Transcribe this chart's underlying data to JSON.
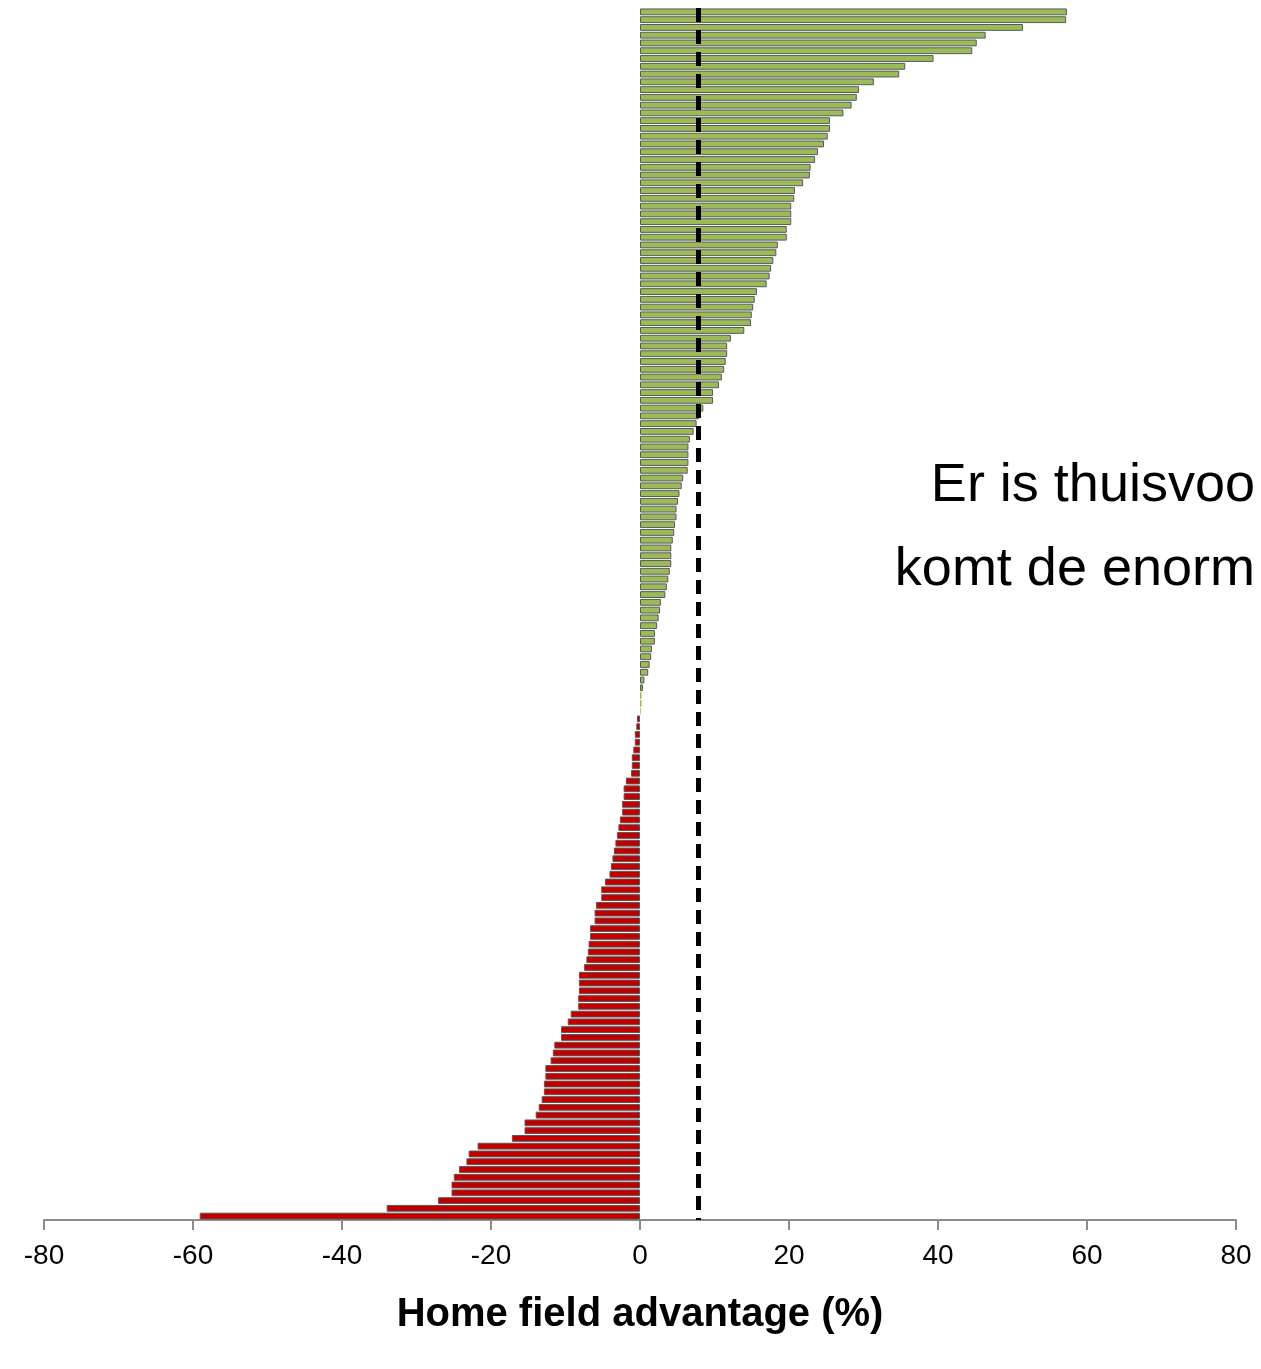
{
  "chart_data": {
    "type": "bar",
    "orientation": "horizontal",
    "xlabel": "Home field advantage (%)",
    "annotations": [
      "Er is thuisvoo\nkomt de enorm"
    ],
    "categories": [
      null,
      null,
      null,
      null,
      null,
      null,
      null,
      null,
      null,
      null,
      null,
      null,
      null,
      null,
      null,
      null,
      null,
      null,
      null,
      null,
      null,
      null,
      null,
      null,
      null,
      null,
      null,
      null,
      null,
      null,
      null,
      null,
      null,
      null,
      null,
      null,
      null,
      null,
      null,
      null,
      null,
      null,
      null,
      null,
      null,
      null,
      null,
      null,
      null,
      null,
      null,
      null,
      null,
      null,
      null,
      null,
      null,
      null,
      null,
      null,
      null,
      null,
      null,
      null,
      null,
      null,
      null,
      null,
      null,
      null,
      null,
      null,
      null,
      null,
      null,
      null,
      null,
      null,
      null,
      null,
      null,
      null,
      null,
      null,
      null,
      null,
      null,
      null,
      null,
      null,
      null,
      null,
      null,
      null,
      null,
      null,
      null,
      null,
      null,
      null,
      null,
      null,
      null,
      null,
      null,
      null,
      null,
      null,
      null,
      null,
      null,
      null,
      null,
      null,
      null,
      null,
      null,
      null,
      null,
      null,
      null,
      null,
      null,
      null,
      null,
      null,
      null,
      null,
      null,
      null,
      null,
      null,
      null,
      null,
      null,
      null,
      null,
      null,
      null,
      null,
      null,
      null,
      null,
      null,
      null,
      null,
      null,
      null,
      null,
      null,
      null,
      null,
      null,
      null,
      null,
      null
    ],
    "values": [
      57.3,
      57.2,
      51.4,
      46.4,
      45.2,
      44.6,
      39.4,
      35.6,
      34.8,
      31.4,
      29.4,
      29.1,
      28.4,
      27.3,
      25.5,
      25.5,
      25.2,
      24.7,
      23.9,
      23.5,
      22.9,
      22.8,
      21.9,
      20.8,
      20.7,
      20.3,
      20.3,
      20.3,
      19.7,
      19.7,
      18.5,
      18.3,
      17.9,
      17.6,
      17.4,
      17.0,
      15.7,
      15.4,
      15.2,
      15.0,
      14.9,
      14.0,
      12.2,
      11.7,
      11.7,
      11.5,
      11.3,
      11.0,
      10.6,
      9.8,
      9.8,
      8.5,
      7.9,
      7.6,
      7.2,
      6.7,
      6.5,
      6.5,
      6.5,
      6.4,
      5.8,
      5.6,
      5.3,
      5.1,
      4.9,
      4.9,
      4.7,
      4.6,
      4.4,
      4.2,
      4.2,
      4.2,
      4.0,
      3.8,
      3.6,
      3.4,
      2.8,
      2.7,
      2.5,
      2.3,
      2.0,
      2.0,
      1.6,
      1.5,
      1.3,
      1.1,
      0.6,
      0.4,
      0.2,
      0.2,
      0.1,
      -0.4,
      -0.5,
      -0.7,
      -0.7,
      -0.9,
      -1.1,
      -1.1,
      -1.2,
      -1.9,
      -2.2,
      -2.2,
      -2.4,
      -2.4,
      -2.7,
      -2.9,
      -3.1,
      -3.3,
      -3.5,
      -3.7,
      -3.9,
      -4.1,
      -4.7,
      -5.2,
      -5.2,
      -5.9,
      -6.1,
      -6.1,
      -6.7,
      -6.7,
      -6.9,
      -7.0,
      -7.2,
      -7.5,
      -8.2,
      -8.2,
      -8.2,
      -8.3,
      -8.3,
      -9.3,
      -9.7,
      -10.6,
      -10.6,
      -11.5,
      -11.7,
      -12.0,
      -12.7,
      -12.7,
      -12.9,
      -12.9,
      -13.2,
      -13.6,
      -14.0,
      -15.5,
      -15.5,
      -17.2,
      -21.8,
      -23.0,
      -23.3,
      -24.3,
      -25.0,
      -25.3,
      -25.3,
      -27.1,
      -34.0,
      -59.1
    ],
    "colors": [
      "#9bbb59",
      "#9bbb59",
      "#9bbb59",
      "#9bbb59",
      "#9bbb59",
      "#9bbb59",
      "#9bbb59",
      "#9bbb59",
      "#9bbb59",
      "#9bbb59",
      "#9bbb59",
      "#9bbb59",
      "#9bbb59",
      "#9bbb59",
      "#9bbb59",
      "#9bbb59",
      "#9bbb59",
      "#9bbb59",
      "#9bbb59",
      "#9bbb59",
      "#9bbb59",
      "#9bbb59",
      "#9bbb59",
      "#9bbb59",
      "#9bbb59",
      "#9bbb59",
      "#9bbb59",
      "#9bbb59",
      "#9bbb59",
      "#9bbb59",
      "#9bbb59",
      "#9bbb59",
      "#9bbb59",
      "#9bbb59",
      "#9bbb59",
      "#9bbb59",
      "#9bbb59",
      "#9bbb59",
      "#9bbb59",
      "#9bbb59",
      "#9bbb59",
      "#9bbb59",
      "#9bbb59",
      "#9bbb59",
      "#9bbb59",
      "#9bbb59",
      "#9bbb59",
      "#9bbb59",
      "#9bbb59",
      "#9bbb59",
      "#9bbb59",
      "#9bbb59",
      "#9bbb59",
      "#9bbb59",
      "#9bbb59",
      "#9bbb59",
      "#9bbb59",
      "#9bbb59",
      "#9bbb59",
      "#9bbb59",
      "#9bbb59",
      "#9bbb59",
      "#9bbb59",
      "#9bbb59",
      "#9bbb59",
      "#9bbb59",
      "#9bbb59",
      "#9bbb59",
      "#9bbb59",
      "#9bbb59",
      "#9bbb59",
      "#9bbb59",
      "#9bbb59",
      "#9bbb59",
      "#9bbb59",
      "#9bbb59",
      "#9bbb59",
      "#9bbb59",
      "#9bbb59",
      "#9bbb59",
      "#9bbb59",
      "#9bbb59",
      "#9bbb59",
      "#9bbb59",
      "#9bbb59",
      "#9bbb59",
      "#9bbb59",
      "#9bbb59",
      "#9bbb59",
      "#9bbb59",
      "#9bbb59",
      "#c00000",
      "#c00000",
      "#c00000",
      "#c00000",
      "#c00000",
      "#c00000",
      "#c00000",
      "#c00000",
      "#c00000",
      "#c00000",
      "#c00000",
      "#c00000",
      "#c00000",
      "#c00000",
      "#c00000",
      "#c00000",
      "#c00000",
      "#c00000",
      "#c00000",
      "#c00000",
      "#c00000",
      "#c00000",
      "#c00000",
      "#c00000",
      "#c00000",
      "#c00000",
      "#c00000",
      "#c00000",
      "#c00000",
      "#c00000",
      "#c00000",
      "#c00000",
      "#c00000",
      "#c00000",
      "#c00000",
      "#c00000",
      "#c00000",
      "#c00000",
      "#c00000",
      "#c00000",
      "#c00000",
      "#c00000",
      "#c00000",
      "#c00000",
      "#c00000",
      "#c00000",
      "#c00000",
      "#c00000",
      "#c00000",
      "#c00000",
      "#c00000",
      "#c00000",
      "#c00000",
      "#c00000",
      "#c00000",
      "#c00000",
      "#c00000",
      "#c00000",
      "#c00000",
      "#c00000",
      "#c00000",
      "#c00000",
      "#c00000",
      "#c00000",
      "#c00000"
    ],
    "xlim": [
      -80,
      80
    ],
    "xticks": [
      -80,
      -60,
      -40,
      -20,
      0,
      20,
      40,
      60,
      80
    ],
    "ref_lines": [
      {
        "axis": "x",
        "value": 7.8,
        "color": "#000000",
        "line_style": "dashed"
      }
    ],
    "grid": false
  }
}
